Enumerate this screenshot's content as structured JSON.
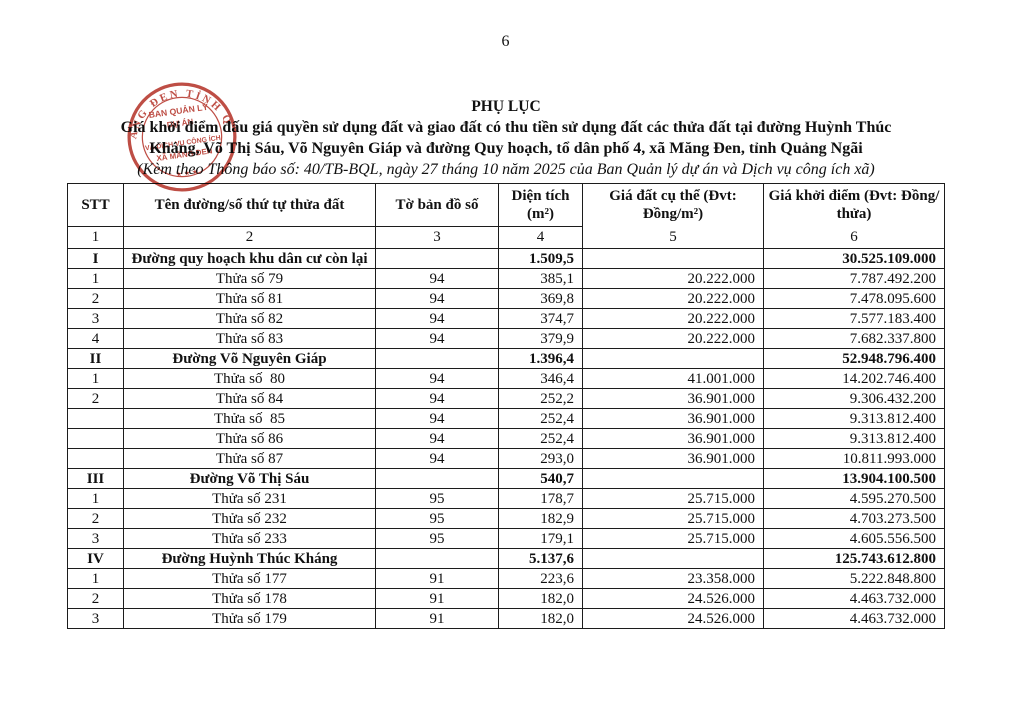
{
  "page": {
    "number": "6"
  },
  "header": {
    "title": "PHỤ LỤC",
    "subtitle_line1": "Giá khởi điểm đấu giá quyền sử dụng đất và giao đất có thu tiền sử dụng đất các thửa đất tại đường Huỳnh Thúc",
    "subtitle_line2": "Kháng, Võ Thị Sáu, Võ Nguyên Giáp và đường Quy hoạch, tổ dân phố 4, xã Măng Đen, tỉnh Quảng Ngãi",
    "note": "(Kèm theo Thông báo số: 40/TB-BQL, ngày 27 tháng 10 năm 2025 của Ban Quản lý dự án và Dịch vụ công ích xã)"
  },
  "stamp": {
    "color": "#b5352b",
    "ring_text": "ĂNG ĐEN TỈNH Q",
    "center_line1": "BAN QUẢN LÝ",
    "center_line2": "DỰ ÁN",
    "center_line3": "VÀ DỊCH VỤ CÔNG ÍCH",
    "center_line4": "XÃ MĂNG ĐEN",
    "stars": "★ ★ ★"
  },
  "table": {
    "headers": [
      "STT",
      "Tên đường/số thứ tự thửa đất",
      "Tờ bản đồ số",
      "Diện tích (m²)",
      "Giá đất cụ thể (Đvt: Đồng/m²)",
      "Giá khởi điểm (Đvt: Đồng/ thửa)"
    ],
    "header_numbers": [
      "1",
      "2",
      "3",
      "4",
      "5",
      "6"
    ],
    "rows": [
      {
        "stt": "I",
        "name": "Đường quy hoạch khu dân cư còn lại",
        "sheet": "",
        "area": "1.509,5",
        "unit_price": "",
        "start_price": "30.525.109.000",
        "section": true
      },
      {
        "stt": "1",
        "name": "Thửa số 79",
        "sheet": "94",
        "area": "385,1",
        "unit_price": "20.222.000",
        "start_price": "7.787.492.200",
        "section": false
      },
      {
        "stt": "2",
        "name": "Thửa số 81",
        "sheet": "94",
        "area": "369,8",
        "unit_price": "20.222.000",
        "start_price": "7.478.095.600",
        "section": false
      },
      {
        "stt": "3",
        "name": "Thửa số 82",
        "sheet": "94",
        "area": "374,7",
        "unit_price": "20.222.000",
        "start_price": "7.577.183.400",
        "section": false
      },
      {
        "stt": "4",
        "name": "Thửa số 83",
        "sheet": "94",
        "area": "379,9",
        "unit_price": "20.222.000",
        "start_price": "7.682.337.800",
        "section": false
      },
      {
        "stt": "II",
        "name": "Đường Võ Nguyên Giáp",
        "sheet": "",
        "area": "1.396,4",
        "unit_price": "",
        "start_price": "52.948.796.400",
        "section": true
      },
      {
        "stt": "1",
        "name": "Thửa số  80",
        "sheet": "94",
        "area": "346,4",
        "unit_price": "41.001.000",
        "start_price": "14.202.746.400",
        "section": false
      },
      {
        "stt": "2",
        "name": "Thửa số 84",
        "sheet": "94",
        "area": "252,2",
        "unit_price": "36.901.000",
        "start_price": "9.306.432.200",
        "section": false
      },
      {
        "stt": "",
        "name": "Thửa số  85",
        "sheet": "94",
        "area": "252,4",
        "unit_price": "36.901.000",
        "start_price": "9.313.812.400",
        "section": false
      },
      {
        "stt": "",
        "name": "Thửa số 86",
        "sheet": "94",
        "area": "252,4",
        "unit_price": "36.901.000",
        "start_price": "9.313.812.400",
        "section": false
      },
      {
        "stt": "",
        "name": "Thửa số 87",
        "sheet": "94",
        "area": "293,0",
        "unit_price": "36.901.000",
        "start_price": "10.811.993.000",
        "section": false
      },
      {
        "stt": "III",
        "name": "Đường Võ Thị Sáu",
        "sheet": "",
        "area": "540,7",
        "unit_price": "",
        "start_price": "13.904.100.500",
        "section": true
      },
      {
        "stt": "1",
        "name": "Thửa số 231",
        "sheet": "95",
        "area": "178,7",
        "unit_price": "25.715.000",
        "start_price": "4.595.270.500",
        "section": false
      },
      {
        "stt": "2",
        "name": "Thửa số 232",
        "sheet": "95",
        "area": "182,9",
        "unit_price": "25.715.000",
        "start_price": "4.703.273.500",
        "section": false
      },
      {
        "stt": "3",
        "name": "Thửa số 233",
        "sheet": "95",
        "area": "179,1",
        "unit_price": "25.715.000",
        "start_price": "4.605.556.500",
        "section": false
      },
      {
        "stt": "IV",
        "name": "Đường Huỳnh Thúc Kháng",
        "sheet": "",
        "area": "5.137,6",
        "unit_price": "",
        "start_price": "125.743.612.800",
        "section": true
      },
      {
        "stt": "1",
        "name": "Thửa số 177",
        "sheet": "91",
        "area": "223,6",
        "unit_price": "23.358.000",
        "start_price": "5.222.848.800",
        "section": false
      },
      {
        "stt": "2",
        "name": "Thửa số 178",
        "sheet": "91",
        "area": "182,0",
        "unit_price": "24.526.000",
        "start_price": "4.463.732.000",
        "section": false
      },
      {
        "stt": "3",
        "name": "Thửa số 179",
        "sheet": "91",
        "area": "182,0",
        "unit_price": "24.526.000",
        "start_price": "4.463.732.000",
        "section": false
      }
    ]
  }
}
